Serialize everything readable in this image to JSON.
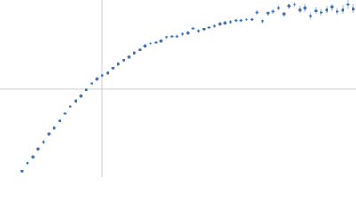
{
  "chart_data": {
    "type": "scatter",
    "xlim": [
      -115,
      285
    ],
    "ylim": [
      -100,
      100
    ],
    "series": [
      {
        "color": "#3a6fb5",
        "x": [
          -90,
          -84,
          -78,
          -72,
          -66,
          -60,
          -54,
          -48,
          -42,
          -36,
          -30,
          -24,
          -18,
          -12,
          -6,
          0,
          6,
          12,
          18,
          24,
          30,
          36,
          42,
          48,
          54,
          60,
          66,
          72,
          78,
          84,
          90,
          96,
          102,
          108,
          114,
          120,
          126,
          132,
          138,
          144,
          150,
          156,
          162,
          168,
          174,
          180,
          186,
          192,
          198,
          204,
          210,
          216,
          222,
          228,
          234,
          240,
          246,
          252,
          258,
          264,
          270,
          276,
          282
        ],
        "values": [
          -93,
          -84,
          -77,
          -68,
          -60,
          -51,
          -44,
          -36,
          -28,
          -20,
          -14,
          -8,
          -1,
          6,
          11,
          15,
          18,
          23,
          28,
          32,
          36,
          40,
          44,
          48,
          51,
          52,
          54,
          58,
          59,
          59,
          62,
          63,
          68,
          65,
          67,
          69,
          71,
          73,
          74,
          75,
          77,
          77,
          78,
          78,
          86,
          76,
          85,
          87,
          91,
          84,
          93,
          95,
          89,
          91,
          82,
          88,
          86,
          89,
          92,
          87,
          89,
          95,
          90
        ],
        "errors": [
          1,
          1,
          1,
          1,
          1,
          1,
          1,
          1,
          1,
          1,
          1,
          1,
          1,
          1,
          1,
          1,
          1,
          1,
          1,
          1,
          1,
          1,
          1,
          1,
          1,
          1,
          1,
          1,
          1,
          1,
          1,
          1.5,
          1.5,
          1.5,
          1.5,
          1.5,
          1.5,
          1.5,
          1.5,
          2,
          2,
          2,
          2,
          2,
          3,
          3,
          3,
          3,
          3,
          3,
          3,
          3,
          4,
          4,
          4,
          4,
          4,
          4,
          4,
          4,
          5,
          5,
          5
        ]
      }
    ]
  }
}
